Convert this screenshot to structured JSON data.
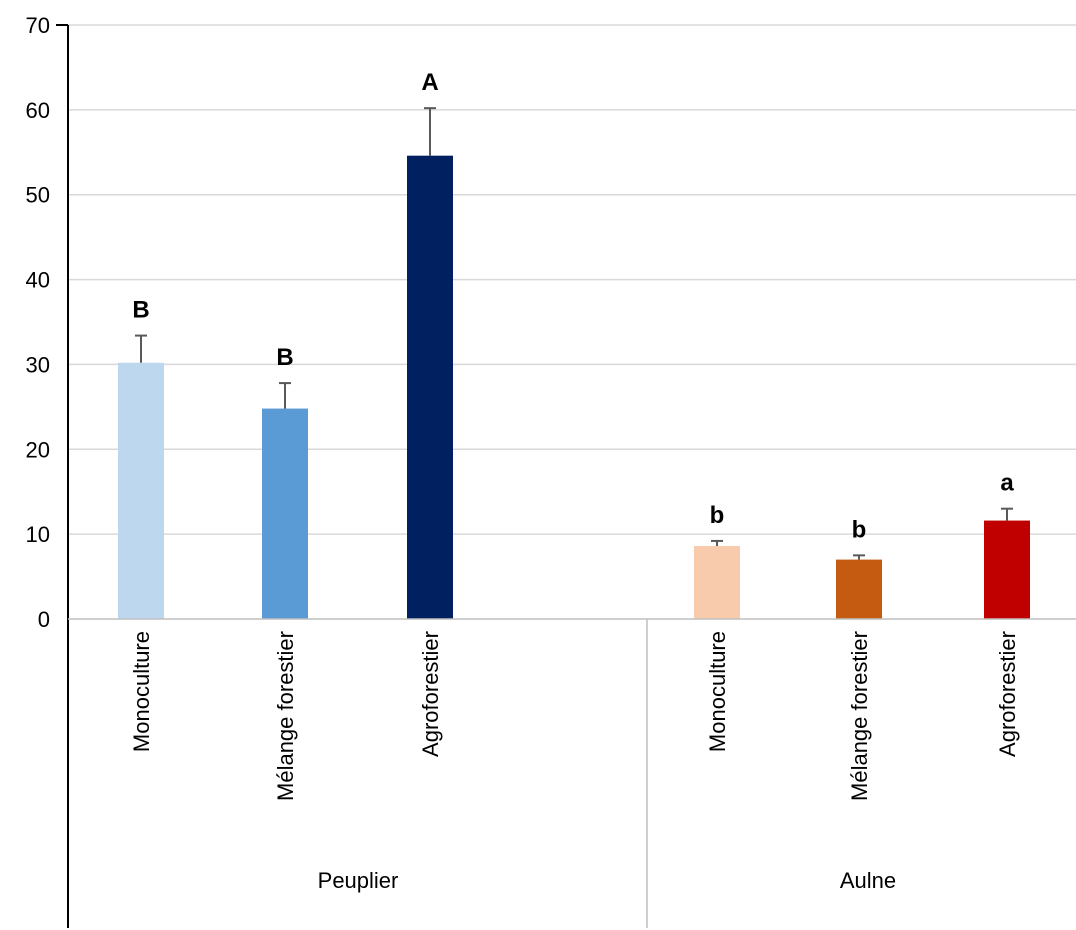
{
  "chart_data": {
    "type": "bar",
    "title": "",
    "xlabel": "",
    "ylabel": "",
    "ylim": [
      0,
      70
    ],
    "yticks": [
      0,
      10,
      20,
      30,
      40,
      50,
      60,
      70
    ],
    "grid": "horizontal",
    "legend": "none",
    "groups": [
      {
        "name": "Peuplier",
        "bars": [
          {
            "category": "Monoculture",
            "value": 30.2,
            "error": 3.2,
            "letter": "B",
            "color": "#BDD7EE"
          },
          {
            "category": "Mélange forestier",
            "value": 24.8,
            "error": 3.0,
            "letter": "B",
            "color": "#5B9BD5"
          },
          {
            "category": "Agroforestier",
            "value": 54.6,
            "error": 5.6,
            "letter": "A",
            "color": "#002060"
          }
        ]
      },
      {
        "name": "Aulne",
        "bars": [
          {
            "category": "Monoculture",
            "value": 8.6,
            "error": 0.6,
            "letter": "b",
            "color": "#F8CBAD"
          },
          {
            "category": "Mélange forestier",
            "value": 7.0,
            "error": 0.5,
            "letter": "b",
            "color": "#C55A11"
          },
          {
            "category": "Agroforestier",
            "value": 11.6,
            "error": 1.4,
            "letter": "a",
            "color": "#C00000"
          }
        ]
      }
    ]
  }
}
